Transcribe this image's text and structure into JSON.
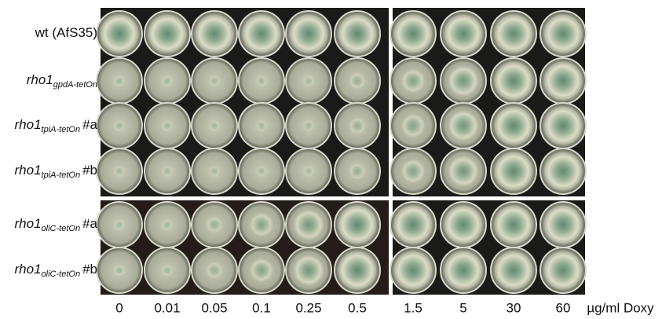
{
  "rows": [
    {
      "label": "wt (AfS35)"
    },
    {
      "gene": "rho1",
      "sub": "gpdA-tetOn"
    },
    {
      "gene": "rho1",
      "sub": "tpiA-tetOn",
      "suffix": "#a"
    },
    {
      "gene": "rho1",
      "sub": "tpiA-tetOn",
      "suffix": "#b"
    },
    {
      "gene": "rho1",
      "sub": "oliC-tetOn",
      "suffix": "#a"
    },
    {
      "gene": "rho1",
      "sub": "oliC-tetOn",
      "suffix": "#b"
    }
  ],
  "columns": [
    "0",
    "0.01",
    "0.05",
    "0.1",
    "0.25",
    "0.5",
    "1.5",
    "5",
    "30",
    "60"
  ],
  "unit": "µg/ml Doxy"
}
